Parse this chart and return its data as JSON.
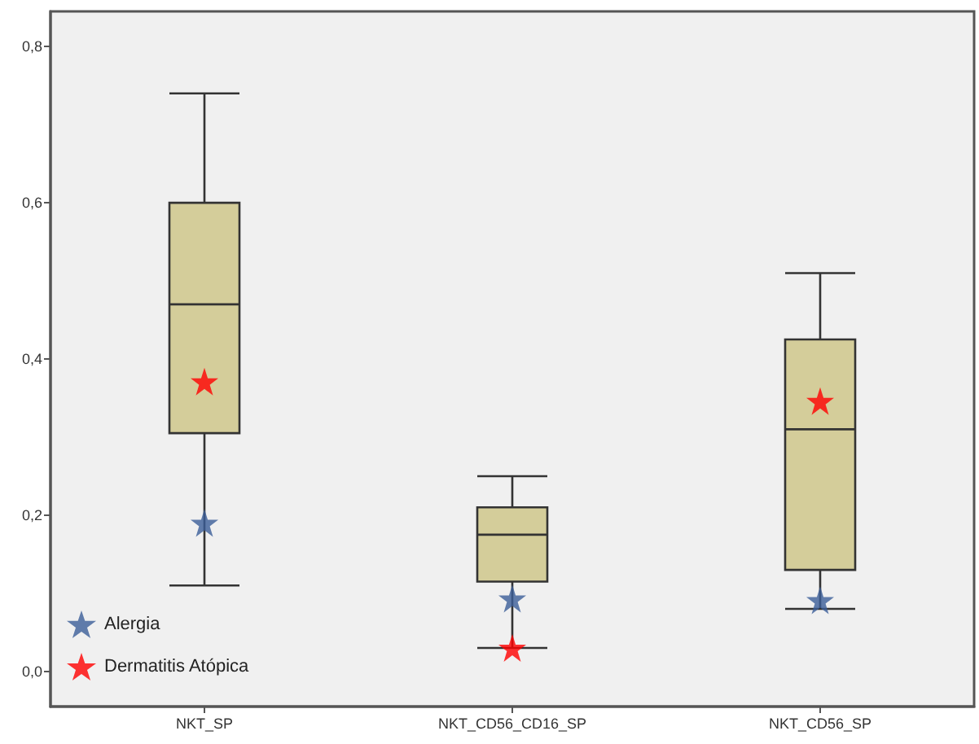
{
  "chart_data": {
    "type": "box",
    "categories": [
      "NKT_SP",
      "NKT_CD56_CD16_SP",
      "NKT_CD56_SP"
    ],
    "series": [
      {
        "type": "box",
        "color": "#d4cd9a",
        "boxes": [
          {
            "low": 0.11,
            "q1": 0.305,
            "median": 0.47,
            "q3": 0.6,
            "high": 0.74
          },
          {
            "low": 0.03,
            "q1": 0.115,
            "median": 0.175,
            "q3": 0.21,
            "high": 0.25
          },
          {
            "low": 0.08,
            "q1": 0.13,
            "median": 0.31,
            "q3": 0.425,
            "high": 0.51
          }
        ]
      },
      {
        "type": "scatter",
        "name": "Alergia",
        "color": "#3b5e99",
        "x": [
          "NKT_SP",
          "NKT_CD56_CD16_SP",
          "NKT_CD56_SP"
        ],
        "values": [
          0.19,
          0.093,
          0.091
        ]
      },
      {
        "type": "scatter",
        "name": "Dermatitis Atópica",
        "color": "#ff0000",
        "x": [
          "NKT_SP",
          "NKT_CD56_CD16_SP",
          "NKT_CD56_SP"
        ],
        "values": [
          0.371,
          0.03,
          0.346
        ]
      }
    ],
    "ylim": [
      -0.045,
      0.845
    ],
    "yticks": [
      {
        "value": 0,
        "label": "0,0"
      },
      {
        "value": 0.2,
        "label": "0,2"
      },
      {
        "value": 0.4,
        "label": "0,4"
      },
      {
        "value": 0.6,
        "label": "0,6"
      },
      {
        "value": 0.8,
        "label": "0,8"
      }
    ],
    "grid": false,
    "legend": "bottom left",
    "marker": "star"
  }
}
